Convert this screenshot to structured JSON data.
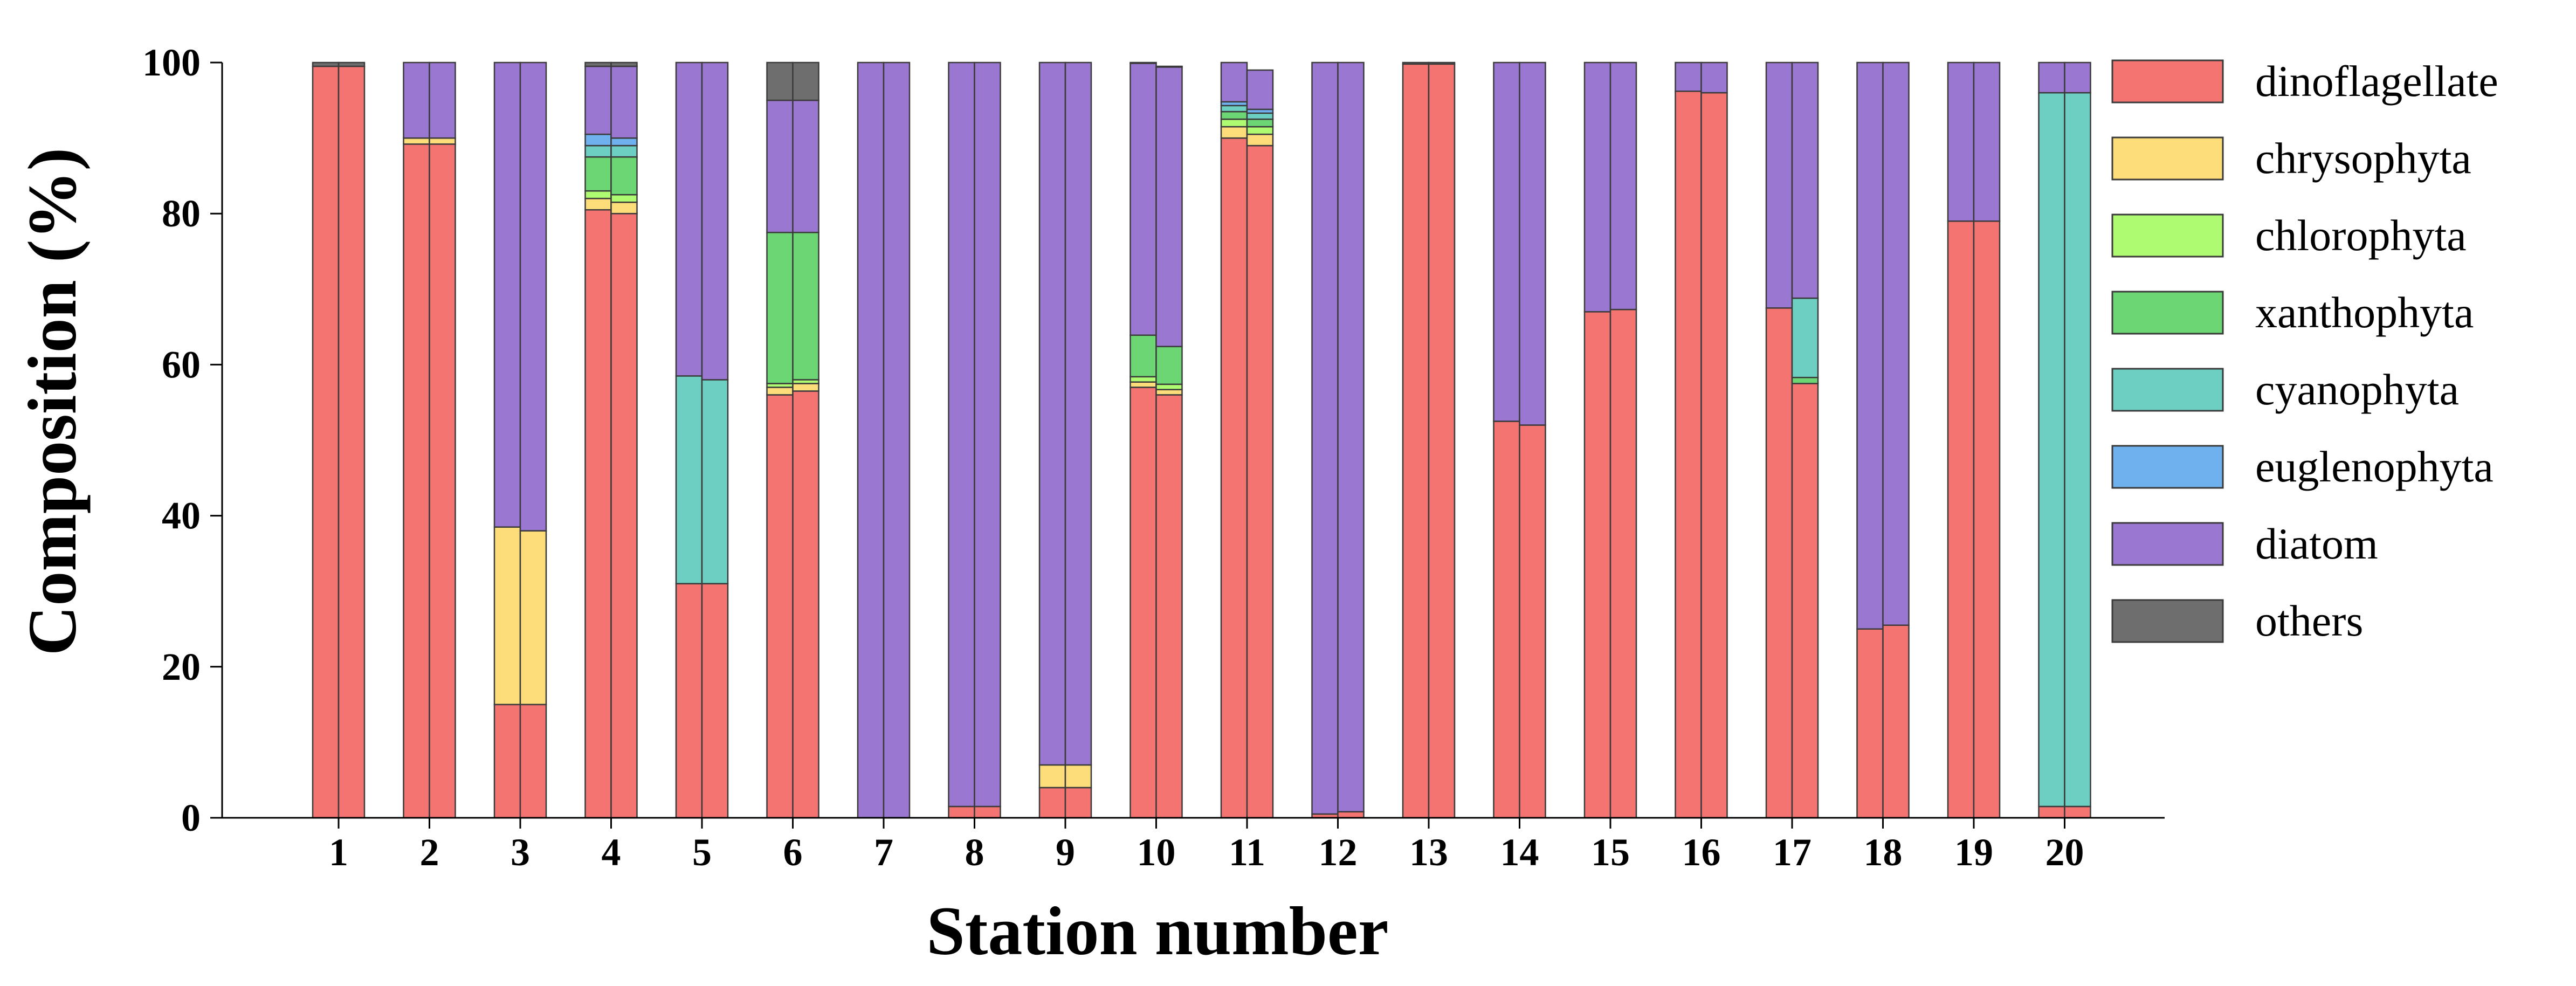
{
  "chart_data": {
    "type": "bar",
    "stacked": true,
    "xlabel": "Station number",
    "ylabel": "Composition (%)",
    "ylim": [
      0,
      100
    ],
    "yticks": [
      0,
      20,
      40,
      60,
      80,
      100
    ],
    "grid": false,
    "legend_position": "right",
    "categories": [
      "1",
      "2",
      "3",
      "4",
      "5",
      "6",
      "7",
      "8",
      "9",
      "10",
      "11",
      "12",
      "13",
      "14",
      "15",
      "16",
      "17",
      "18",
      "19",
      "20"
    ],
    "series": [
      {
        "name": "dinoflagellate",
        "color": "#F47472",
        "left": [
          99.5,
          89.2,
          15.0,
          80.5,
          31.0,
          56.0,
          0.0,
          1.5,
          4.0,
          57.0,
          90.0,
          0.5,
          99.8,
          52.5,
          67.0,
          96.2,
          67.5,
          25.0,
          79.0,
          1.5
        ],
        "right": [
          99.5,
          89.2,
          15.0,
          80.0,
          31.0,
          56.5,
          0.0,
          1.5,
          4.0,
          56.0,
          89.0,
          0.8,
          99.8,
          52.0,
          67.3,
          96.0,
          57.5,
          25.5,
          79.0,
          1.5
        ]
      },
      {
        "name": "chrysophyta",
        "color": "#FDDD7A",
        "left": [
          0,
          0.8,
          23.5,
          1.5,
          0,
          1.0,
          0,
          0,
          3.0,
          0.7,
          1.5,
          0,
          0,
          0,
          0,
          0,
          0,
          0,
          0,
          0
        ],
        "right": [
          0,
          0.8,
          23.0,
          1.5,
          0,
          1.0,
          0,
          0,
          3.0,
          0.7,
          1.5,
          0,
          0,
          0,
          0,
          0,
          0,
          0,
          0,
          0
        ]
      },
      {
        "name": "chlorophyta",
        "color": "#AEFB72",
        "left": [
          0,
          0,
          0,
          1.0,
          0,
          0.5,
          0,
          0,
          0,
          0.7,
          1.0,
          0,
          0,
          0,
          0,
          0,
          0,
          0,
          0,
          0
        ],
        "right": [
          0,
          0,
          0,
          1.0,
          0,
          0.5,
          0,
          0,
          0,
          0.7,
          1.0,
          0,
          0,
          0,
          0,
          0,
          0,
          0,
          0,
          0
        ]
      },
      {
        "name": "xanthophyta",
        "color": "#6CD674",
        "left": [
          0,
          0,
          0,
          4.5,
          0,
          20.0,
          0,
          0,
          0,
          5.5,
          1.0,
          0,
          0,
          0,
          0,
          0,
          0,
          0,
          0,
          0
        ],
        "right": [
          0,
          0,
          0,
          5.0,
          0,
          19.5,
          0,
          0,
          0,
          5.0,
          1.0,
          0,
          0,
          0,
          0,
          0,
          0.8,
          0,
          0,
          0
        ]
      },
      {
        "name": "cyanophyta",
        "color": "#6CCFC2",
        "left": [
          0,
          0,
          0,
          1.5,
          27.5,
          0,
          0,
          0,
          0,
          0,
          0.8,
          0,
          0,
          0,
          0,
          0,
          0,
          0,
          0,
          94.5
        ],
        "right": [
          0,
          0,
          0,
          1.5,
          27.0,
          0,
          0,
          0,
          0,
          0,
          0.8,
          0,
          0,
          0,
          0,
          0,
          10.5,
          0,
          0,
          94.5
        ]
      },
      {
        "name": "euglenophyta",
        "color": "#6FB0EF",
        "left": [
          0,
          0,
          0,
          1.5,
          0,
          0,
          0,
          0,
          0,
          0,
          0.5,
          0,
          0,
          0,
          0,
          0,
          0,
          0,
          0,
          0
        ],
        "right": [
          0,
          0,
          0,
          1.0,
          0,
          0,
          0,
          0,
          0,
          0,
          0.5,
          0,
          0,
          0,
          0,
          0,
          0,
          0,
          0,
          0
        ]
      },
      {
        "name": "diatom",
        "color": "#9A77D1",
        "left": [
          0,
          10.0,
          61.5,
          9.0,
          41.5,
          17.5,
          100.0,
          98.5,
          93.0,
          36.0,
          5.2,
          99.5,
          0,
          47.5,
          33.0,
          3.8,
          32.5,
          75.0,
          21.0,
          4.0
        ],
        "right": [
          0,
          10.0,
          62.0,
          9.5,
          42.0,
          17.5,
          100.0,
          98.5,
          93.0,
          37.0,
          5.2,
          99.2,
          0,
          48.0,
          32.7,
          4.0,
          31.2,
          74.5,
          21.0,
          4.0
        ]
      },
      {
        "name": "others",
        "color": "#6E6E6E",
        "left": [
          0.5,
          0,
          0,
          0.5,
          0,
          5.0,
          0,
          0,
          0,
          0.1,
          0,
          0,
          0.2,
          0,
          0,
          0,
          0,
          0,
          0,
          0
        ],
        "right": [
          0.5,
          0,
          0,
          0.5,
          0,
          5.0,
          0,
          0,
          0,
          0.1,
          0,
          0,
          0.2,
          0,
          0,
          0,
          0,
          0,
          0,
          0
        ]
      }
    ]
  }
}
